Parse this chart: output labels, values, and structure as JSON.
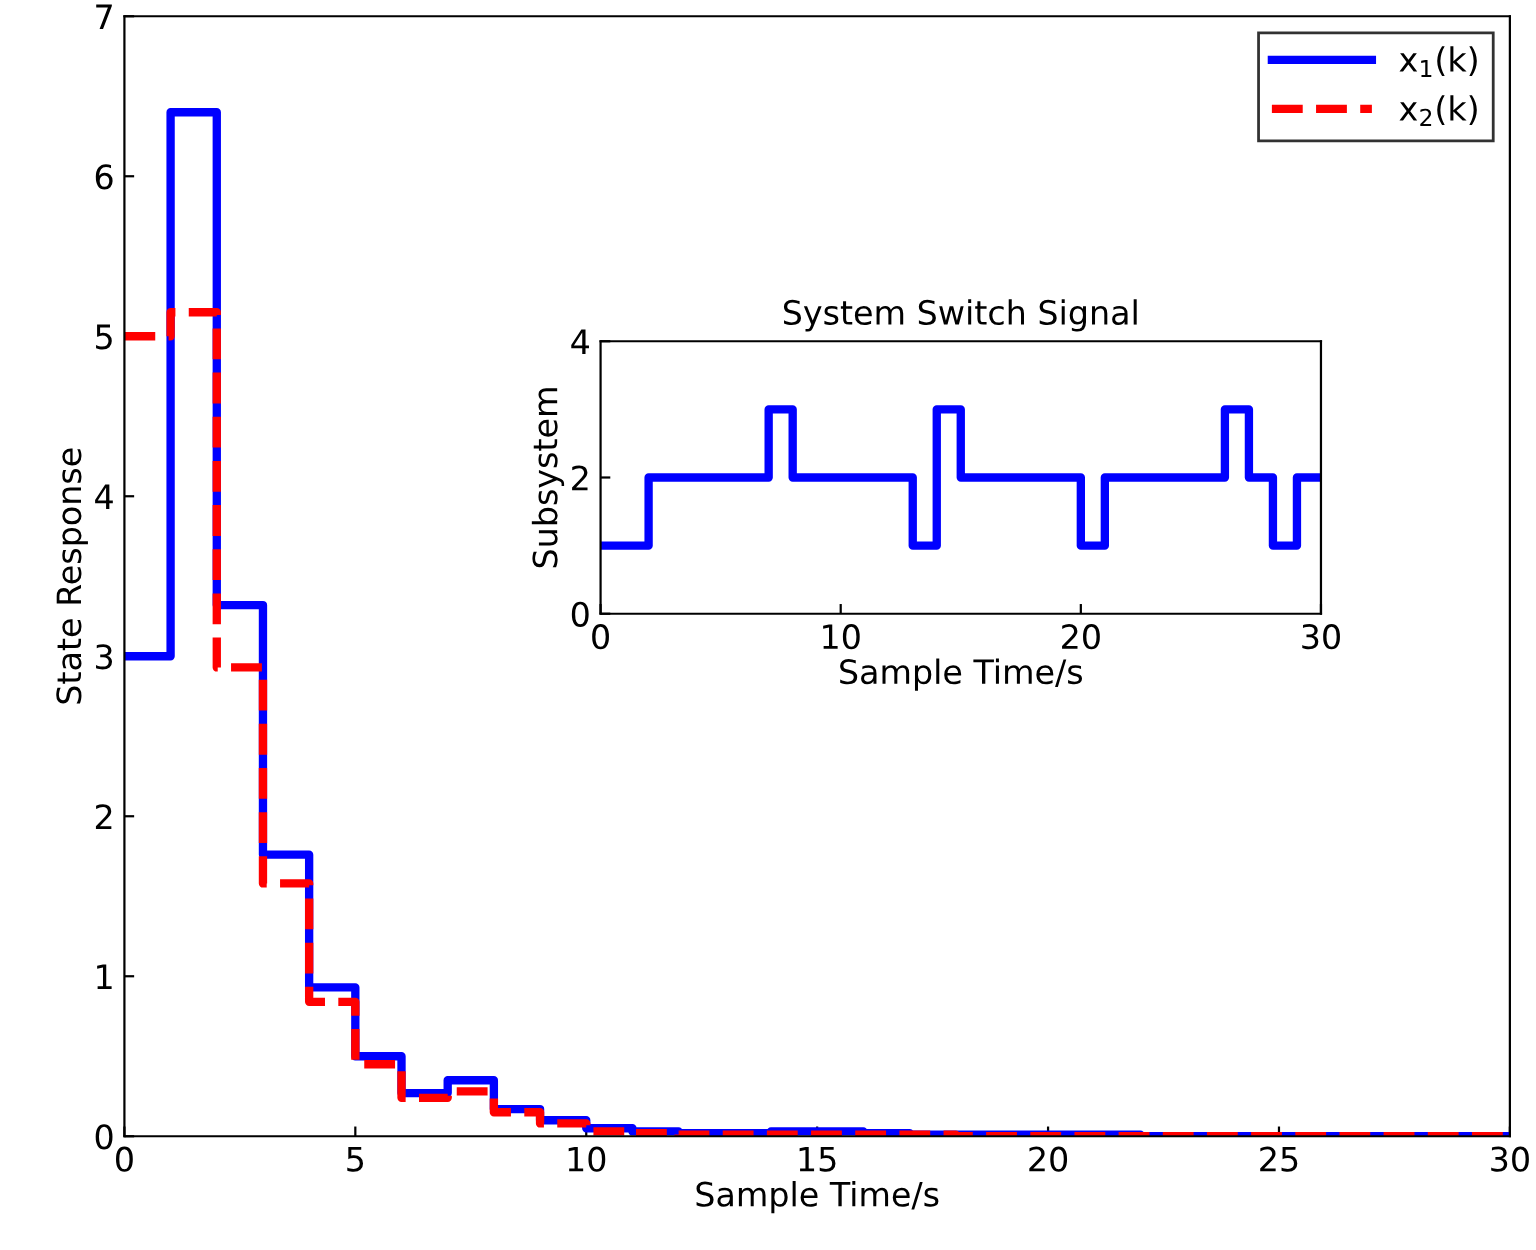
{
  "chart_data": [
    {
      "type": "step",
      "xlabel": "Sample Time/s",
      "ylabel": "State Response",
      "xlim": [
        0,
        30
      ],
      "ylim": [
        0,
        7
      ],
      "xticks": [
        0,
        5,
        10,
        15,
        20,
        25,
        30
      ],
      "yticks": [
        0,
        1,
        2,
        3,
        4,
        5,
        6,
        7
      ],
      "grid": false,
      "legend": "top right",
      "x": [
        0,
        1,
        2,
        3,
        4,
        5,
        6,
        7,
        8,
        9,
        10,
        11,
        12,
        13,
        14,
        15,
        16,
        17,
        18,
        19,
        20,
        21,
        22,
        23,
        24,
        25,
        26,
        27,
        28,
        29,
        30
      ],
      "series": [
        {
          "name": "x$_{1}$(k)",
          "color": "#0000ff",
          "line_style": "solid",
          "values": [
            3,
            6.4,
            3.32,
            1.76,
            0.93,
            0.5,
            0.27,
            0.35,
            0.17,
            0.1,
            0.05,
            0.03,
            0.02,
            0.02,
            0.03,
            0.03,
            0.02,
            0.01,
            0.01,
            0.01,
            0.01,
            0.01,
            0,
            0,
            0,
            0,
            0,
            0,
            0,
            0,
            0
          ]
        },
        {
          "name": "x$_{2}$(k)",
          "color": "#ff0000",
          "line_style": "dashed",
          "values": [
            5,
            5.15,
            2.93,
            1.58,
            0.84,
            0.45,
            0.24,
            0.28,
            0.15,
            0.08,
            0.03,
            0.02,
            0.01,
            0.01,
            0.01,
            0.01,
            0.01,
            0.01,
            0,
            0,
            0,
            0,
            0,
            0,
            0,
            0,
            0,
            0,
            0,
            0,
            0
          ]
        }
      ]
    },
    {
      "type": "step",
      "title": "System Switch Signal",
      "xlabel": "Sample Time/s",
      "ylabel": "Subsystem",
      "xlim": [
        0,
        30
      ],
      "ylim": [
        0,
        4
      ],
      "xticks": [
        0,
        10,
        20,
        30
      ],
      "yticks": [
        0,
        2,
        4
      ],
      "grid": false,
      "legend": false,
      "x": [
        0,
        1,
        2,
        3,
        4,
        5,
        6,
        7,
        8,
        9,
        10,
        11,
        12,
        13,
        14,
        15,
        16,
        17,
        18,
        19,
        20,
        21,
        22,
        23,
        24,
        25,
        26,
        27,
        28,
        29,
        30
      ],
      "series": [
        {
          "color": "#0000ff",
          "line_style": "solid",
          "values": [
            1,
            1,
            2,
            2,
            2,
            2,
            2,
            3,
            2,
            2,
            2,
            2,
            2,
            1,
            3,
            2,
            2,
            2,
            2,
            2,
            1,
            2,
            2,
            2,
            2,
            2,
            3,
            2,
            1,
            2,
            2
          ]
        }
      ]
    }
  ]
}
